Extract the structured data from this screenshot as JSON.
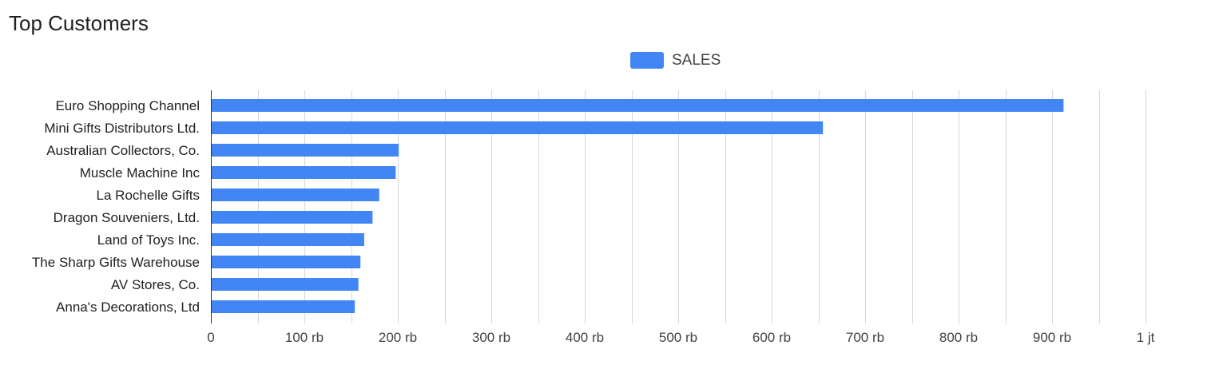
{
  "page": {
    "title": "Top Customers"
  },
  "chart_data": {
    "type": "bar",
    "orientation": "horizontal",
    "title": "Top Customers",
    "xlabel": "",
    "ylabel": "",
    "categories": [
      "Euro Shopping Channel",
      "Mini Gifts Distributors Ltd.",
      "Australian Collectors, Co.",
      "Muscle Machine Inc",
      "La Rochelle Gifts",
      "Dragon Souveniers, Ltd.",
      "Land of Toys Inc.",
      "The Sharp Gifts Warehouse",
      "AV Stores, Co.",
      "Anna's Decorations, Ltd"
    ],
    "series": [
      {
        "name": "SALES",
        "color": "#4285f4",
        "values": [
          912294,
          654858,
          200995,
          197737,
          180125,
          172990,
          164069,
          160010,
          157808,
          153996
        ]
      }
    ],
    "xlim": [
      0,
      1000000
    ],
    "xticks": [
      {
        "value": 0,
        "label": "0"
      },
      {
        "value": 100000,
        "label": "100 rb"
      },
      {
        "value": 200000,
        "label": "200 rb"
      },
      {
        "value": 300000,
        "label": "300 rb"
      },
      {
        "value": 400000,
        "label": "400 rb"
      },
      {
        "value": 500000,
        "label": "500 rb"
      },
      {
        "value": 600000,
        "label": "600 rb"
      },
      {
        "value": 700000,
        "label": "700 rb"
      },
      {
        "value": 800000,
        "label": "800 rb"
      },
      {
        "value": 900000,
        "label": "900 rb"
      },
      {
        "value": 1000000,
        "label": "1 jt"
      }
    ],
    "minor_grid_step": 50000,
    "grid": true,
    "legend_position": "top-center"
  }
}
